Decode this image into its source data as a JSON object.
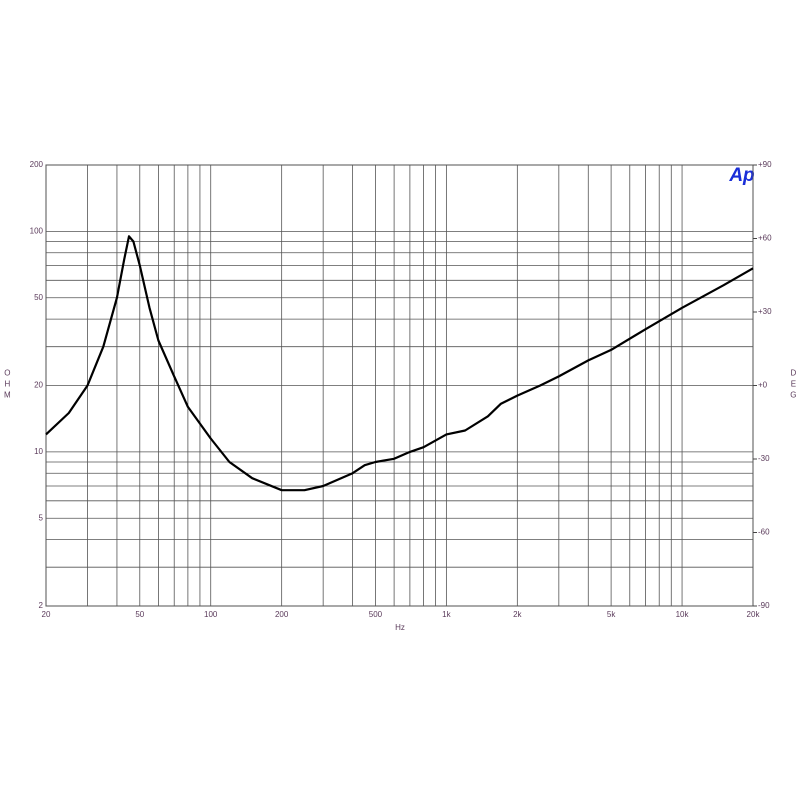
{
  "chart_data": {
    "type": "line",
    "x_label": "Hz",
    "y_label": "OHM",
    "y2_label": "DEG",
    "logo": "Ap",
    "xlog": true,
    "ylog": true,
    "grid": true,
    "xlim": [
      20,
      20000
    ],
    "ylim": [
      2,
      200
    ],
    "y2lim": [
      -90,
      90
    ],
    "xticks": [
      20,
      50,
      100,
      200,
      500,
      {
        "value": 1000,
        "label": "1k"
      },
      {
        "value": 2000,
        "label": "2k"
      },
      {
        "value": 5000,
        "label": "5k"
      },
      {
        "value": 10000,
        "label": "10k"
      },
      {
        "value": 20000,
        "label": "20k"
      }
    ],
    "xminor": [
      30,
      40,
      60,
      70,
      80,
      90,
      300,
      400,
      600,
      700,
      800,
      900,
      3000,
      4000,
      6000,
      7000,
      8000,
      9000
    ],
    "yticks": [
      2,
      5,
      10,
      20,
      50,
      100,
      200
    ],
    "yminor": [
      3,
      4,
      6,
      7,
      8,
      9,
      30,
      40,
      60,
      70,
      80,
      90
    ],
    "y2ticks": [
      -90,
      -60,
      -30,
      {
        "value": 0,
        "label": "+0"
      },
      {
        "value": 30,
        "label": "+30"
      },
      {
        "value": 60,
        "label": "+60"
      },
      {
        "value": 90,
        "label": "+90"
      }
    ],
    "series": [
      {
        "color": "#000000",
        "x": [
          20,
          25,
          30,
          35,
          40,
          43,
          45,
          47,
          50,
          55,
          60,
          70,
          80,
          100,
          120,
          150,
          200,
          250,
          300,
          400,
          450,
          500,
          600,
          700,
          800,
          1000,
          1200,
          1500,
          1700,
          2000,
          2500,
          3000,
          4000,
          5000,
          7000,
          10000,
          15000,
          20000
        ],
        "values": [
          12,
          15,
          20,
          30,
          50,
          75,
          95,
          90,
          70,
          45,
          32,
          22,
          16,
          11.5,
          9,
          7.6,
          6.7,
          6.7,
          7,
          8,
          8.7,
          9,
          9.3,
          10,
          10.5,
          12,
          12.5,
          14.5,
          16.5,
          18,
          20,
          22,
          26,
          29,
          36,
          45,
          57,
          68
        ]
      }
    ]
  }
}
